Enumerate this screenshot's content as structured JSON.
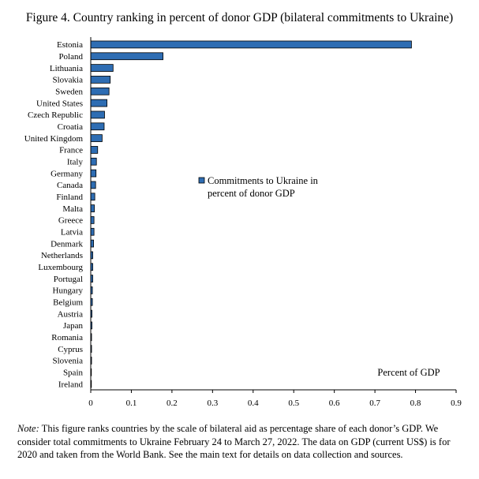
{
  "title": "Figure 4. Country ranking in percent of donor GDP (bilateral commitments to Ukraine)",
  "note_label": "Note:",
  "note_text": " This figure ranks countries by the scale of bilateral aid as percentage share of each donor’s GDP. We consider total commitments to Ukraine February 24 to March 27, 2022. The data on GDP (current US$) is for 2020 and taken from the World Bank. See the main text for details on data collection and sources.",
  "chart_data": {
    "type": "bar",
    "orientation": "horizontal",
    "title": "Figure 4. Country ranking in percent of donor GDP (bilateral commitments to Ukraine)",
    "xlabel": "Percent of GDP",
    "ylabel": "",
    "xlim": [
      0,
      0.9
    ],
    "xticks": [
      0,
      0.1,
      0.2,
      0.3,
      0.4,
      0.5,
      0.6,
      0.7,
      0.8,
      0.9
    ],
    "grid": false,
    "legend_position": "center",
    "bar_color": "#2e6db3",
    "categories": [
      "Estonia",
      "Poland",
      "Lithuania",
      "Slovakia",
      "Sweden",
      "United States",
      "Czech Republic",
      "Croatia",
      "United Kingdom",
      "France",
      "Italy",
      "Germany",
      "Canada",
      "Finland",
      "Malta",
      "Greece",
      "Latvia",
      "Denmark",
      "Netherlands",
      "Luxembourg",
      "Portugal",
      "Hungary",
      "Belgium",
      "Austria",
      "Japan",
      "Romania",
      "Cyprus",
      "Slovenia",
      "Spain",
      "Ireland"
    ],
    "series": [
      {
        "name": "Commitments to Ukraine in percent of donor GDP",
        "values": [
          0.79,
          0.178,
          0.055,
          0.048,
          0.045,
          0.04,
          0.034,
          0.033,
          0.028,
          0.017,
          0.014,
          0.013,
          0.012,
          0.01,
          0.009,
          0.008,
          0.008,
          0.007,
          0.005,
          0.005,
          0.005,
          0.004,
          0.004,
          0.003,
          0.003,
          0.002,
          0.002,
          0.002,
          0.001,
          0.001
        ]
      }
    ]
  }
}
